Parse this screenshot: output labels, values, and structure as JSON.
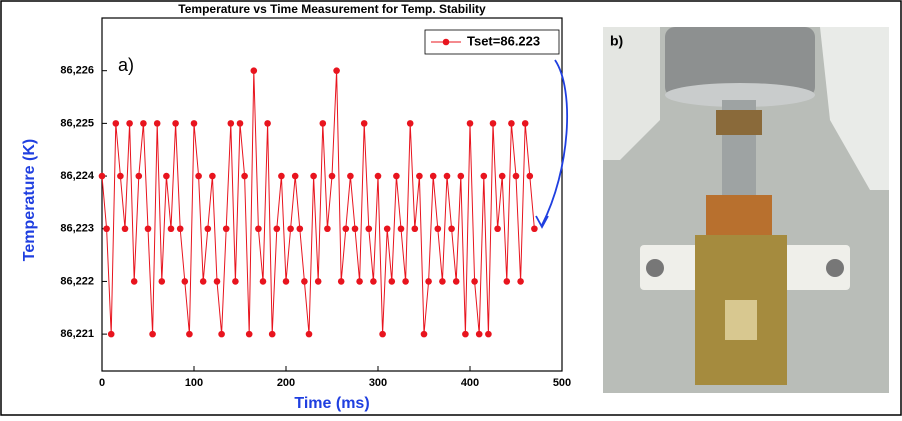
{
  "chart_data": {
    "type": "line",
    "title": "Temperature vs Time Measurement for Temp. Stability",
    "panel_labels": [
      "a)",
      "b)"
    ],
    "x_label": "Time (ms)",
    "y_label": "Temperature (K)",
    "x": [
      0,
      5,
      10,
      15,
      20,
      25,
      30,
      35,
      40,
      45,
      50,
      55,
      60,
      65,
      70,
      75,
      80,
      85,
      90,
      95,
      100,
      105,
      110,
      115,
      120,
      125,
      130,
      135,
      140,
      145,
      150,
      155,
      160,
      165,
      170,
      175,
      180,
      185,
      190,
      195,
      200,
      205,
      210,
      215,
      220,
      225,
      230,
      235,
      240,
      245,
      250,
      255,
      260,
      265,
      270,
      275,
      280,
      285,
      290,
      295,
      300,
      305,
      310,
      315,
      320,
      325,
      330,
      335,
      340,
      345,
      350,
      355,
      360,
      365,
      370,
      375,
      380,
      385,
      390,
      395,
      400,
      405,
      410,
      415,
      420,
      425,
      430,
      435,
      440,
      445,
      450,
      455,
      460,
      465,
      470
    ],
    "series": [
      {
        "name": "Tset=86.223",
        "color": "#e8141e",
        "values": [
          86.224,
          86.223,
          86.221,
          86.225,
          86.224,
          86.223,
          86.225,
          86.222,
          86.224,
          86.225,
          86.223,
          86.221,
          86.225,
          86.222,
          86.224,
          86.223,
          86.225,
          86.223,
          86.222,
          86.221,
          86.225,
          86.224,
          86.222,
          86.223,
          86.224,
          86.222,
          86.221,
          86.223,
          86.225,
          86.222,
          86.225,
          86.224,
          86.221,
          86.226,
          86.223,
          86.222,
          86.225,
          86.221,
          86.223,
          86.224,
          86.222,
          86.223,
          86.224,
          86.223,
          86.222,
          86.221,
          86.224,
          86.222,
          86.225,
          86.223,
          86.224,
          86.226,
          86.222,
          86.223,
          86.224,
          86.223,
          86.222,
          86.225,
          86.223,
          86.222,
          86.224,
          86.221,
          86.223,
          86.222,
          86.224,
          86.223,
          86.222,
          86.225,
          86.223,
          86.224,
          86.221,
          86.222,
          86.224,
          86.223,
          86.222,
          86.224,
          86.223,
          86.222,
          86.224,
          86.221,
          86.225,
          86.222,
          86.221,
          86.224,
          86.221,
          86.225,
          86.223,
          86.224,
          86.222,
          86.225,
          86.224,
          86.222,
          86.225,
          86.224,
          86.223
        ]
      }
    ],
    "xlim": [
      0,
      500
    ],
    "xticks": [
      0,
      100,
      200,
      300,
      400,
      500
    ],
    "ylim": [
      86.2203,
      86.227
    ],
    "yticks": [
      {
        "value": 86.221,
        "label": "86,221"
      },
      {
        "value": 86.222,
        "label": "86,222"
      },
      {
        "value": 86.223,
        "label": "86,223"
      },
      {
        "value": 86.224,
        "label": "86,224"
      },
      {
        "value": 86.225,
        "label": "86,225"
      },
      {
        "value": 86.226,
        "label": "86,226"
      }
    ],
    "legend": "upper right",
    "markers": true
  }
}
